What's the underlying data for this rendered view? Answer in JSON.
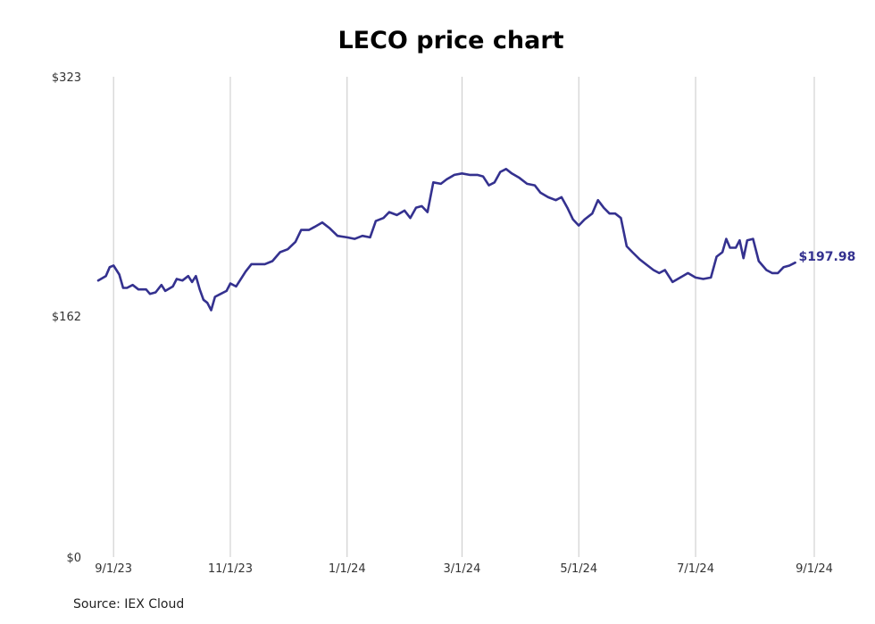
{
  "chart_data": {
    "type": "line",
    "title": "LECO price chart",
    "source": "Source: IEX Cloud",
    "xlabel": "",
    "ylabel": "",
    "y_ticks": [
      {
        "value": 323,
        "label": "$323"
      },
      {
        "value": 162,
        "label": "$162"
      },
      {
        "value": 0,
        "label": "$0"
      }
    ],
    "ylim": [
      0,
      323
    ],
    "x_ticks": [
      {
        "date": "2023-09-01",
        "label": "9/1/23"
      },
      {
        "date": "2023-11-01",
        "label": "11/1/23"
      },
      {
        "date": "2024-01-01",
        "label": "1/1/24"
      },
      {
        "date": "2024-03-01",
        "label": "3/1/24"
      },
      {
        "date": "2024-05-01",
        "label": "5/1/24"
      },
      {
        "date": "2024-07-01",
        "label": "7/1/24"
      },
      {
        "date": "2024-09-01",
        "label": "9/1/24"
      }
    ],
    "xlim": [
      "2023-08-24",
      "2024-09-01"
    ],
    "grid": "vertical",
    "last_value_label": "$197.98",
    "colors": {
      "line": "#34318f",
      "grid": "#c8c8c8"
    },
    "series": [
      {
        "points": [
          [
            "2023-08-24",
            186
          ],
          [
            "2023-08-28",
            189
          ],
          [
            "2023-08-30",
            195
          ],
          [
            "2023-09-01",
            196
          ],
          [
            "2023-09-04",
            190
          ],
          [
            "2023-09-06",
            181
          ],
          [
            "2023-09-08",
            181
          ],
          [
            "2023-09-11",
            183
          ],
          [
            "2023-09-14",
            180
          ],
          [
            "2023-09-18",
            180
          ],
          [
            "2023-09-20",
            177
          ],
          [
            "2023-09-23",
            178
          ],
          [
            "2023-09-26",
            183
          ],
          [
            "2023-09-28",
            179
          ],
          [
            "2023-10-02",
            182
          ],
          [
            "2023-10-04",
            187
          ],
          [
            "2023-10-07",
            186
          ],
          [
            "2023-10-10",
            189
          ],
          [
            "2023-10-12",
            185
          ],
          [
            "2023-10-14",
            189
          ],
          [
            "2023-10-16",
            180
          ],
          [
            "2023-10-18",
            173
          ],
          [
            "2023-10-20",
            171
          ],
          [
            "2023-10-22",
            166
          ],
          [
            "2023-10-24",
            175
          ],
          [
            "2023-10-27",
            177
          ],
          [
            "2023-10-30",
            179
          ],
          [
            "2023-11-01",
            184
          ],
          [
            "2023-11-04",
            182
          ],
          [
            "2023-11-07",
            188
          ],
          [
            "2023-11-09",
            192
          ],
          [
            "2023-11-12",
            197
          ],
          [
            "2023-11-15",
            197
          ],
          [
            "2023-11-19",
            197
          ],
          [
            "2023-11-23",
            199
          ],
          [
            "2023-11-27",
            205
          ],
          [
            "2023-12-01",
            207
          ],
          [
            "2023-12-05",
            212
          ],
          [
            "2023-12-08",
            220
          ],
          [
            "2023-12-12",
            220
          ],
          [
            "2023-12-15",
            222
          ],
          [
            "2023-12-19",
            225
          ],
          [
            "2023-12-23",
            221
          ],
          [
            "2023-12-27",
            216
          ],
          [
            "2024-01-01",
            215
          ],
          [
            "2024-01-05",
            214
          ],
          [
            "2024-01-09",
            216
          ],
          [
            "2024-01-13",
            215
          ],
          [
            "2024-01-16",
            226
          ],
          [
            "2024-01-20",
            228
          ],
          [
            "2024-01-23",
            232
          ],
          [
            "2024-01-27",
            230
          ],
          [
            "2024-01-31",
            233
          ],
          [
            "2024-02-03",
            228
          ],
          [
            "2024-02-06",
            235
          ],
          [
            "2024-02-09",
            236
          ],
          [
            "2024-02-12",
            232
          ],
          [
            "2024-02-15",
            252
          ],
          [
            "2024-02-19",
            251
          ],
          [
            "2024-02-22",
            254
          ],
          [
            "2024-02-26",
            257
          ],
          [
            "2024-03-01",
            258
          ],
          [
            "2024-03-05",
            257
          ],
          [
            "2024-03-09",
            257
          ],
          [
            "2024-03-12",
            256
          ],
          [
            "2024-03-15",
            250
          ],
          [
            "2024-03-18",
            252
          ],
          [
            "2024-03-21",
            259
          ],
          [
            "2024-03-24",
            261
          ],
          [
            "2024-03-27",
            258
          ],
          [
            "2024-03-31",
            255
          ],
          [
            "2024-04-04",
            251
          ],
          [
            "2024-04-08",
            250
          ],
          [
            "2024-04-11",
            245
          ],
          [
            "2024-04-15",
            242
          ],
          [
            "2024-04-19",
            240
          ],
          [
            "2024-04-22",
            242
          ],
          [
            "2024-04-25",
            235
          ],
          [
            "2024-04-28",
            227
          ],
          [
            "2024-05-01",
            223
          ],
          [
            "2024-05-04",
            227
          ],
          [
            "2024-05-08",
            231
          ],
          [
            "2024-05-11",
            240
          ],
          [
            "2024-05-14",
            235
          ],
          [
            "2024-05-17",
            231
          ],
          [
            "2024-05-20",
            231
          ],
          [
            "2024-05-23",
            228
          ],
          [
            "2024-05-26",
            209
          ],
          [
            "2024-05-29",
            205
          ],
          [
            "2024-06-02",
            200
          ],
          [
            "2024-06-05",
            197
          ],
          [
            "2024-06-09",
            193
          ],
          [
            "2024-06-12",
            191
          ],
          [
            "2024-06-15",
            193
          ],
          [
            "2024-06-19",
            185
          ],
          [
            "2024-06-23",
            188
          ],
          [
            "2024-06-27",
            191
          ],
          [
            "2024-07-01",
            188
          ],
          [
            "2024-07-05",
            187
          ],
          [
            "2024-07-09",
            188
          ],
          [
            "2024-07-12",
            202
          ],
          [
            "2024-07-15",
            205
          ],
          [
            "2024-07-17",
            214
          ],
          [
            "2024-07-19",
            208
          ],
          [
            "2024-07-22",
            208
          ],
          [
            "2024-07-24",
            213
          ],
          [
            "2024-07-26",
            201
          ],
          [
            "2024-07-28",
            213
          ],
          [
            "2024-07-31",
            214
          ],
          [
            "2024-08-03",
            199
          ],
          [
            "2024-08-07",
            193
          ],
          [
            "2024-08-10",
            191
          ],
          [
            "2024-08-13",
            191
          ],
          [
            "2024-08-16",
            195
          ],
          [
            "2024-08-19",
            196
          ],
          [
            "2024-08-22",
            198
          ]
        ]
      }
    ]
  }
}
